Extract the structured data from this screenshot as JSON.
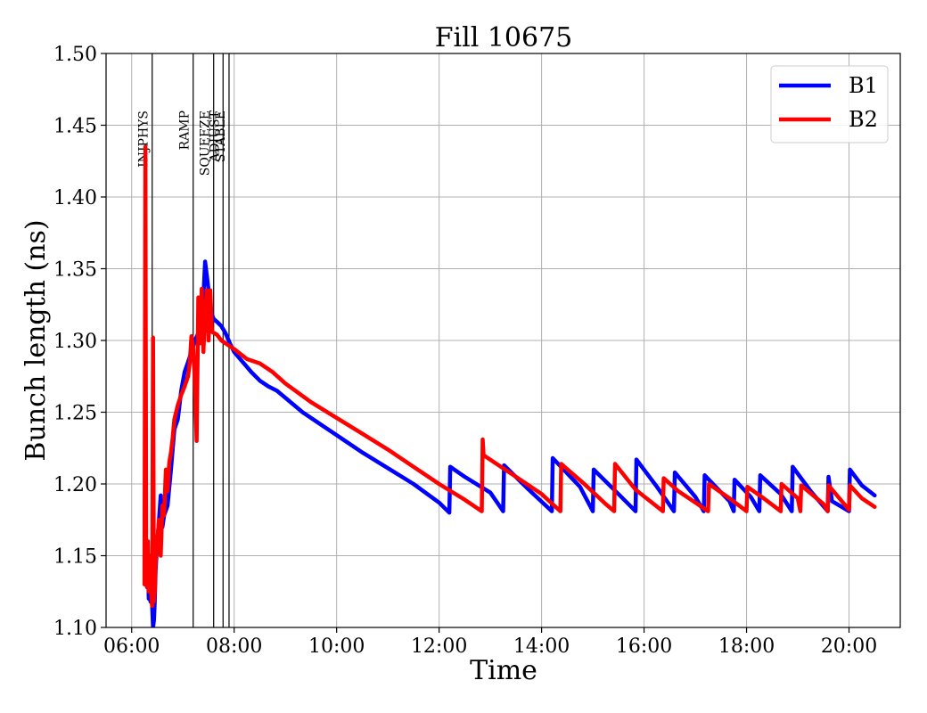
{
  "chart_data": {
    "type": "line",
    "title": "Fill 10675",
    "xlabel": "Time",
    "ylabel": "Bunch length (ns)",
    "xlim": [
      "05:30",
      "21:00"
    ],
    "ylim": [
      1.1,
      1.5
    ],
    "grid": true,
    "legend_position": "top-right",
    "x_ticks": [
      "06:00",
      "08:00",
      "10:00",
      "12:00",
      "14:00",
      "16:00",
      "18:00",
      "20:00"
    ],
    "y_ticks": [
      "1.10",
      "1.15",
      "1.20",
      "1.25",
      "1.30",
      "1.35",
      "1.40",
      "1.45",
      "1.50"
    ],
    "phases": [
      {
        "label": "INJPHYS",
        "time": "06:24"
      },
      {
        "label": "RAMP",
        "time": "07:12"
      },
      {
        "label": "SQUEEZE",
        "time": "07:36"
      },
      {
        "label": "ADJUST",
        "time": "07:47"
      },
      {
        "label": "STABLE",
        "time": "07:54"
      }
    ],
    "series": [
      {
        "name": "B1",
        "color": "#0000ff",
        "points": [
          [
            "06:15",
            1.15
          ],
          [
            "06:16",
            1.135
          ],
          [
            "06:17",
            1.15
          ],
          [
            "06:18",
            1.128
          ],
          [
            "06:19",
            1.145
          ],
          [
            "06:20",
            1.12
          ],
          [
            "06:21",
            1.14
          ],
          [
            "06:22",
            1.118
          ],
          [
            "06:23",
            1.125
          ],
          [
            "06:24",
            1.115
          ],
          [
            "06:25",
            1.1
          ],
          [
            "06:26",
            1.105
          ],
          [
            "06:27",
            1.118
          ],
          [
            "06:28",
            1.14
          ],
          [
            "06:30",
            1.16
          ],
          [
            "06:32",
            1.175
          ],
          [
            "06:34",
            1.192
          ],
          [
            "06:36",
            1.17
          ],
          [
            "06:38",
            1.178
          ],
          [
            "06:42",
            1.185
          ],
          [
            "06:46",
            1.21
          ],
          [
            "06:50",
            1.238
          ],
          [
            "06:54",
            1.245
          ],
          [
            "06:58",
            1.265
          ],
          [
            "07:02",
            1.278
          ],
          [
            "07:06",
            1.285
          ],
          [
            "07:10",
            1.292
          ],
          [
            "07:14",
            1.3
          ],
          [
            "07:18",
            1.305
          ],
          [
            "07:20",
            1.31
          ],
          [
            "07:22",
            1.318
          ],
          [
            "07:24",
            1.33
          ],
          [
            "07:26",
            1.355
          ],
          [
            "07:28",
            1.345
          ],
          [
            "07:30",
            1.335
          ],
          [
            "07:32",
            1.325
          ],
          [
            "07:34",
            1.318
          ],
          [
            "07:36",
            1.315
          ],
          [
            "07:40",
            1.313
          ],
          [
            "07:45",
            1.31
          ],
          [
            "07:50",
            1.305
          ],
          [
            "07:55",
            1.298
          ],
          [
            "08:00",
            1.292
          ],
          [
            "08:10",
            1.285
          ],
          [
            "08:20",
            1.278
          ],
          [
            "08:30",
            1.272
          ],
          [
            "08:40",
            1.268
          ],
          [
            "08:50",
            1.265
          ],
          [
            "09:00",
            1.26
          ],
          [
            "09:20",
            1.25
          ],
          [
            "09:40",
            1.242
          ],
          [
            "10:00",
            1.234
          ],
          [
            "10:30",
            1.222
          ],
          [
            "11:00",
            1.211
          ],
          [
            "11:30",
            1.2
          ],
          [
            "12:00",
            1.187
          ],
          [
            "12:12",
            1.18
          ],
          [
            "12:13",
            1.212
          ],
          [
            "12:30",
            1.205
          ],
          [
            "13:00",
            1.194
          ],
          [
            "13:15",
            1.181
          ],
          [
            "13:16",
            1.213
          ],
          [
            "13:45",
            1.196
          ],
          [
            "14:12",
            1.181
          ],
          [
            "14:13",
            1.218
          ],
          [
            "14:45",
            1.198
          ],
          [
            "15:00",
            1.181
          ],
          [
            "15:01",
            1.21
          ],
          [
            "15:30",
            1.193
          ],
          [
            "15:50",
            1.181
          ],
          [
            "15:51",
            1.217
          ],
          [
            "16:15",
            1.198
          ],
          [
            "16:35",
            1.181
          ],
          [
            "16:36",
            1.208
          ],
          [
            "17:00",
            1.191
          ],
          [
            "17:10",
            1.181
          ],
          [
            "17:11",
            1.206
          ],
          [
            "17:40",
            1.188
          ],
          [
            "17:45",
            1.181
          ],
          [
            "17:46",
            1.203
          ],
          [
            "18:05",
            1.191
          ],
          [
            "18:15",
            1.181
          ],
          [
            "18:16",
            1.206
          ],
          [
            "18:40",
            1.193
          ],
          [
            "18:53",
            1.181
          ],
          [
            "18:54",
            1.212
          ],
          [
            "19:15",
            1.195
          ],
          [
            "19:35",
            1.181
          ],
          [
            "19:36",
            1.205
          ],
          [
            "19:40",
            1.188
          ],
          [
            "20:00",
            1.181
          ],
          [
            "20:01",
            1.21
          ],
          [
            "20:15",
            1.199
          ],
          [
            "20:30",
            1.192
          ]
        ]
      },
      {
        "name": "B2",
        "color": "#ff0000",
        "points": [
          [
            "06:15",
            1.13
          ],
          [
            "06:16",
            1.435
          ],
          [
            "06:17",
            1.15
          ],
          [
            "06:18",
            1.128
          ],
          [
            "06:19",
            1.16
          ],
          [
            "06:20",
            1.125
          ],
          [
            "06:21",
            1.15
          ],
          [
            "06:22",
            1.13
          ],
          [
            "06:24",
            1.115
          ],
          [
            "06:25",
            1.302
          ],
          [
            "06:26",
            1.118
          ],
          [
            "06:27",
            1.125
          ],
          [
            "06:28",
            1.145
          ],
          [
            "06:30",
            1.16
          ],
          [
            "06:32",
            1.175
          ],
          [
            "06:34",
            1.15
          ],
          [
            "06:36",
            1.185
          ],
          [
            "06:38",
            1.178
          ],
          [
            "06:40",
            1.21
          ],
          [
            "06:42",
            1.195
          ],
          [
            "06:44",
            1.215
          ],
          [
            "06:46",
            1.222
          ],
          [
            "06:48",
            1.232
          ],
          [
            "06:50",
            1.245
          ],
          [
            "06:54",
            1.255
          ],
          [
            "06:58",
            1.262
          ],
          [
            "07:02",
            1.268
          ],
          [
            "07:06",
            1.275
          ],
          [
            "07:08",
            1.285
          ],
          [
            "07:10",
            1.303
          ],
          [
            "07:12",
            1.295
          ],
          [
            "07:14",
            1.272
          ],
          [
            "07:16",
            1.23
          ],
          [
            "07:18",
            1.33
          ],
          [
            "07:20",
            1.298
          ],
          [
            "07:22",
            1.336
          ],
          [
            "07:24",
            1.292
          ],
          [
            "07:26",
            1.32
          ],
          [
            "07:28",
            1.335
          ],
          [
            "07:30",
            1.3
          ],
          [
            "07:32",
            1.335
          ],
          [
            "07:34",
            1.306
          ],
          [
            "07:40",
            1.304
          ],
          [
            "07:45",
            1.3
          ],
          [
            "07:50",
            1.298
          ],
          [
            "08:00",
            1.294
          ],
          [
            "08:15",
            1.287
          ],
          [
            "08:30",
            1.284
          ],
          [
            "08:45",
            1.278
          ],
          [
            "09:00",
            1.27
          ],
          [
            "09:30",
            1.257
          ],
          [
            "10:00",
            1.246
          ],
          [
            "10:30",
            1.235
          ],
          [
            "11:00",
            1.224
          ],
          [
            "11:30",
            1.212
          ],
          [
            "12:00",
            1.2
          ],
          [
            "12:30",
            1.189
          ],
          [
            "12:50",
            1.181
          ],
          [
            "12:51",
            1.231
          ],
          [
            "12:52",
            1.22
          ],
          [
            "13:30",
            1.205
          ],
          [
            "14:00",
            1.193
          ],
          [
            "14:22",
            1.181
          ],
          [
            "14:23",
            1.214
          ],
          [
            "14:50",
            1.2
          ],
          [
            "15:15",
            1.186
          ],
          [
            "15:25",
            1.181
          ],
          [
            "15:26",
            1.214
          ],
          [
            "15:50",
            1.196
          ],
          [
            "16:22",
            1.181
          ],
          [
            "16:23",
            1.204
          ],
          [
            "16:40",
            1.195
          ],
          [
            "17:00",
            1.187
          ],
          [
            "17:15",
            1.181
          ],
          [
            "17:16",
            1.2
          ],
          [
            "17:40",
            1.19
          ],
          [
            "18:00",
            1.181
          ],
          [
            "18:01",
            1.198
          ],
          [
            "18:20",
            1.19
          ],
          [
            "18:40",
            1.181
          ],
          [
            "18:41",
            1.2
          ],
          [
            "19:00",
            1.19
          ],
          [
            "19:03",
            1.181
          ],
          [
            "19:04",
            1.199
          ],
          [
            "19:30",
            1.186
          ],
          [
            "19:35",
            1.181
          ],
          [
            "19:36",
            1.199
          ],
          [
            "20:00",
            1.182
          ],
          [
            "20:01",
            1.199
          ],
          [
            "20:15",
            1.19
          ],
          [
            "20:30",
            1.184
          ]
        ]
      }
    ]
  }
}
